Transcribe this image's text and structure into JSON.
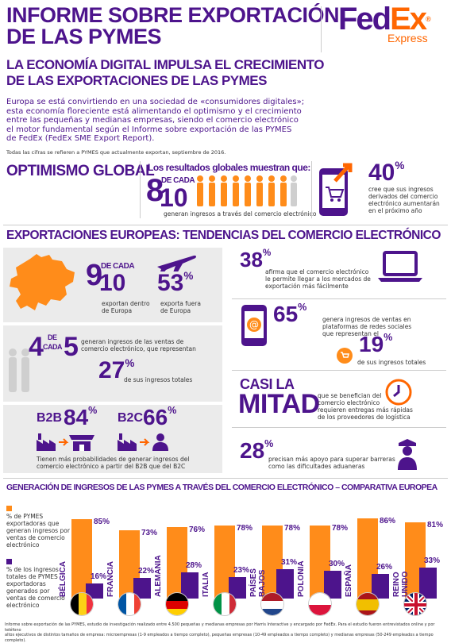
{
  "header": {
    "title_line1": "INFORME SOBRE EXPORTACIÓN",
    "title_line2": "DE LAS PYMES",
    "subtitle_line1": "LA ECONOMÍA DIGITAL IMPULSA EL CRECIMIENTO",
    "subtitle_line2": "DE LAS EXPORTACIONES DE LAS PYMES",
    "intro_1": "Europa se está convirtiendo en una sociedad de «consumidores digitales»;",
    "intro_2": "esta economía floreciente está alimentando el optimismo y el crecimiento",
    "intro_3": "entre las pequeñas y medianas empresas, siendo el comercio electrónico",
    "intro_4": "el motor fundamental según el Informe sobre exportación de las PYMES",
    "intro_5": "de FedEx (FedEx SME Export Report).",
    "note": "Todas las cifras se refieren a PYMES que actualmente exportan, septiembre de 2016.",
    "logo_fed": "Fed",
    "logo_ex": "Ex",
    "logo_express": "Express",
    "logo_reg": "®"
  },
  "optimism": {
    "title": "OPTIMISMO GLOBAL",
    "results_label": "Los resultados globales muestran que:",
    "num_8": "8",
    "de_cada": "DE CADA",
    "num_10": "10",
    "caption": "generan ingresos a través del comercio electrónico",
    "pct_40": "40",
    "pct_sign": "%",
    "text_40_1": "cree que sus ingresos",
    "text_40_2": "derivados del comercio",
    "text_40_3": "electrónico aumentarán",
    "text_40_4": "en el próximo año"
  },
  "europe": {
    "title": "EXPORTACIONES EUROPEAS: TENDENCIAS DEL COMERCIO ELECTRÓNICO",
    "num_9": "9",
    "de_cada": "DE CADA",
    "num_10": "10",
    "export_within_1": "exportan dentro",
    "export_within_2": "de Europa",
    "pct_53": "53",
    "export_outside_1": "exporta fuera",
    "export_outside_2": "de Europa",
    "num_4": "4",
    "de": "DE",
    "cada": "CADA",
    "num_5": "5",
    "text_4_5_1": "generan ingresos de las ventas de",
    "text_4_5_2": "comercio electrónico, que representan",
    "pct_27": "27",
    "text_27": "de sus ingresos totales",
    "b2b": "B2B",
    "pct_84": "84",
    "b2c": "B2C",
    "pct_66": "66",
    "b2b_text_1": "Tienen más probabilidades de generar ingresos del",
    "b2b_text_2": "comercio electrónico a partir del B2B que del B2C",
    "pct_38": "38",
    "text_38_1": "afirma que el comercio electrónico",
    "text_38_2": "le permite llegar a los mercados de",
    "text_38_3": "exportación más fácilmente",
    "pct_65": "65",
    "text_65_1": "genera ingresos de ventas en",
    "text_65_2": "plataformas de redes sociales",
    "text_65_3": "que representan el",
    "pct_19": "19",
    "text_19": "de sus ingresos totales",
    "casi_la": "CASI LA",
    "mitad": "MITAD",
    "text_mitad_1": "que se benefician del",
    "text_mitad_2": "comercio electrónico",
    "text_mitad_3": "requieren entregas más rápidas",
    "text_mitad_4": "de los proveedores de logística",
    "pct_28": "28",
    "text_28_1": "precisan más apoyo para superar barreras",
    "text_28_2": "como las dificultades aduaneras",
    "pct": "%"
  },
  "comparison": {
    "title": "GENERACIÓN DE INGRESOS DE LAS PYMES A TRAVÉS DEL COMERCIO ELECTRÓNICO – COMPARATIVA EUROPEA",
    "legend_orange_1": "% de PYMES",
    "legend_orange_2": "exportadoras que",
    "legend_orange_3": "generan ingresos por",
    "legend_orange_4": "ventas de comercio",
    "legend_orange_5": "electrónico",
    "legend_purple_1": "% de los ingresos",
    "legend_purple_2": "totales de PYMES",
    "legend_purple_3": "exportadoras",
    "legend_purple_4": "generados por",
    "legend_purple_5": "ventas de comercio",
    "legend_purple_6": "electrónico"
  },
  "chart_data": {
    "type": "bar",
    "categories": [
      "BÉLGICA",
      "FRANCIA",
      "ALEMANIA",
      "ITALIA",
      "PAÍSES BAJOS",
      "POLONIA",
      "ESPAÑA",
      "REINO UNIDO"
    ],
    "series": [
      {
        "name": "% de PYMES exportadoras que generan ingresos por ventas de comercio electrónico",
        "values": [
          85,
          73,
          76,
          78,
          78,
          78,
          86,
          81
        ],
        "color": "#ff8c1a"
      },
      {
        "name": "% de los ingresos totales de PYMES exportadoras generados por ventas de comercio electrónico",
        "values": [
          16,
          22,
          28,
          23,
          31,
          30,
          26,
          33
        ],
        "color": "#4d148c"
      }
    ],
    "ylim": [
      0,
      100
    ]
  },
  "footer": {
    "line1": "Informe sobre exportación de las PYMES, estudio de investigación realizado entre 4.500 pequeñas y medianas empresas por Harris Interactive y encargado por FedEx. Para el estudio fueron entrevistados online y por teléfono",
    "line2": "altos ejecutivos de distintos tamaños de empresa: microempresas (1-9 empleados a tiempo completo), pequeñas empresas (10-49 empleados a tiempo completo) y medianas empresas (50-249 empleados a tiempo completo)."
  },
  "colors": {
    "purple": "#4d148c",
    "orange": "#ff6600",
    "bar_orange": "#ff8c1a",
    "panel": "#ebebeb"
  }
}
